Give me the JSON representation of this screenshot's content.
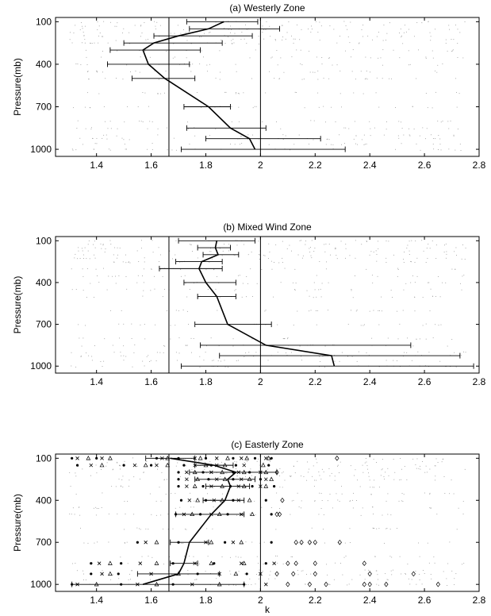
{
  "chart_data": [
    {
      "type": "line",
      "title": "(a) Westerly Zone",
      "xlabel": "",
      "ylabel": "Pressure(mb)",
      "xlim": [
        1.25,
        2.8
      ],
      "ylim": [
        1050,
        70
      ],
      "xticks": [
        "1.4",
        "1.6",
        "1.8",
        "2",
        "2.2",
        "2.4",
        "2.6",
        "2.8"
      ],
      "yticks": [
        "100",
        "400",
        "700",
        "1000"
      ],
      "vlines": [
        1.665,
        2.0
      ],
      "series": [
        {
          "pressure": [
            100,
            150,
            200,
            250,
            300,
            400,
            500,
            700,
            850,
            925,
            1000
          ],
          "mean": [
            1.866,
            1.81,
            1.7,
            1.61,
            1.57,
            1.59,
            1.65,
            1.81,
            1.89,
            1.96,
            1.98
          ],
          "lower": [
            1.73,
            1.74,
            1.61,
            1.5,
            1.45,
            1.44,
            1.53,
            1.72,
            1.73,
            1.8,
            1.71
          ],
          "upper": [
            1.99,
            2.07,
            1.97,
            1.86,
            1.78,
            1.74,
            1.76,
            1.89,
            2.02,
            2.22,
            2.31
          ]
        }
      ]
    },
    {
      "type": "line",
      "title": "(b) Mixed Wind Zone",
      "xlabel": "",
      "ylabel": "Pressure(mb)",
      "xlim": [
        1.25,
        2.8
      ],
      "ylim": [
        1050,
        70
      ],
      "xticks": [
        "1.4",
        "1.6",
        "1.8",
        "2",
        "2.2",
        "2.4",
        "2.6",
        "2.8"
      ],
      "yticks": [
        "100",
        "400",
        "700",
        "1000"
      ],
      "vlines": [
        1.665,
        2.0
      ],
      "series": [
        {
          "pressure": [
            100,
            150,
            200,
            250,
            300,
            400,
            500,
            700,
            850,
            925,
            1000
          ],
          "mean": [
            1.84,
            1.835,
            1.845,
            1.785,
            1.775,
            1.8,
            1.84,
            1.88,
            2.02,
            2.26,
            2.27
          ],
          "lower": [
            1.7,
            1.77,
            1.79,
            1.69,
            1.63,
            1.72,
            1.77,
            1.76,
            1.78,
            1.85,
            1.71
          ],
          "upper": [
            1.98,
            1.89,
            1.92,
            1.86,
            1.86,
            1.91,
            1.91,
            2.04,
            2.55,
            2.73,
            2.78
          ]
        }
      ]
    },
    {
      "type": "line",
      "title": "(c) Easterly Zone",
      "xlabel": "k",
      "ylabel": "Pressure(mb)",
      "xlim": [
        1.25,
        2.8
      ],
      "ylim": [
        1050,
        70
      ],
      "xticks": [
        "1.4",
        "1.6",
        "1.8",
        "2",
        "2.2",
        "2.4",
        "2.6",
        "2.8"
      ],
      "yticks": [
        "100",
        "400",
        "700",
        "1000"
      ],
      "vlines": [
        1.665,
        2.0
      ],
      "series": [
        {
          "pressure": [
            100,
            150,
            200,
            250,
            300,
            400,
            500,
            700,
            850,
            925,
            1000
          ],
          "mean": [
            1.67,
            1.83,
            1.91,
            1.88,
            1.89,
            1.87,
            1.82,
            1.74,
            1.72,
            1.7,
            1.57
          ],
          "lower": [
            1.58,
            1.76,
            1.74,
            1.76,
            1.8,
            1.79,
            1.69,
            1.67,
            1.67,
            1.55,
            1.31
          ],
          "upper": [
            1.76,
            1.9,
            2.06,
            1.98,
            1.96,
            1.94,
            1.94,
            1.81,
            1.77,
            1.85,
            1.94
          ]
        }
      ],
      "symbol_points": [
        {
          "p": 100,
          "x": [
            1.31,
            1.33,
            1.37,
            1.4,
            1.42,
            1.45,
            1.62,
            1.64,
            1.66,
            1.7,
            1.76,
            1.78,
            1.8,
            1.84,
            1.88,
            1.9,
            1.93,
            1.95,
            1.98,
            2.02,
            2.03,
            2.04,
            2.28
          ]
        },
        {
          "p": 150,
          "x": [
            1.33,
            1.38,
            1.42,
            1.5,
            1.54,
            1.58,
            1.6,
            1.62,
            1.66,
            1.72,
            1.76,
            1.8,
            1.82,
            1.84,
            1.87,
            1.91,
            1.94,
            2.01,
            2.03
          ]
        },
        {
          "p": 200,
          "x": [
            1.7,
            1.73,
            1.76,
            1.79,
            1.82,
            1.86,
            1.9,
            1.92,
            1.94,
            1.96,
            2.0,
            2.02,
            2.06
          ]
        },
        {
          "p": 250,
          "x": [
            1.7,
            1.73,
            1.77,
            1.81,
            1.84,
            1.87,
            1.9,
            1.93,
            1.96,
            2.0,
            2.02,
            2.04
          ]
        },
        {
          "p": 300,
          "x": [
            1.7,
            1.73,
            1.76,
            1.79,
            1.82,
            1.86,
            1.89,
            1.92,
            1.94,
            1.97,
            2.0,
            2.02,
            2.05
          ]
        },
        {
          "p": 400,
          "x": [
            1.71,
            1.74,
            1.77,
            1.8,
            1.83,
            1.86,
            1.9,
            1.92,
            1.96,
            2.02,
            2.08
          ]
        },
        {
          "p": 500,
          "x": [
            1.69,
            1.72,
            1.75,
            1.78,
            1.82,
            1.85,
            1.88,
            1.93,
            1.97,
            2.04,
            2.06,
            2.07
          ]
        },
        {
          "p": 700,
          "x": [
            1.55,
            1.58,
            1.62,
            1.7,
            1.8,
            1.82,
            1.87,
            1.9,
            1.93,
            2.04,
            2.13,
            2.15,
            2.18,
            2.2,
            2.29
          ]
        },
        {
          "p": 850,
          "x": [
            1.38,
            1.41,
            1.45,
            1.49,
            1.56,
            1.62,
            1.68,
            1.76,
            1.82,
            1.83,
            1.93,
            1.94,
            2.02,
            2.05,
            2.1,
            2.13,
            2.2,
            2.38
          ]
        },
        {
          "p": 925,
          "x": [
            1.38,
            1.42,
            1.45,
            1.48,
            1.6,
            1.7,
            1.77,
            1.85,
            1.91,
            1.95,
            2.0,
            2.06,
            2.12,
            2.2,
            2.4,
            2.56
          ]
        },
        {
          "p": 1000,
          "x": [
            1.31,
            1.33,
            1.4,
            1.49,
            1.55,
            1.62,
            1.68,
            1.75,
            1.85,
            1.94,
            2.02,
            2.1,
            2.18,
            2.24,
            2.38,
            2.4,
            2.46,
            2.65
          ]
        }
      ]
    }
  ]
}
